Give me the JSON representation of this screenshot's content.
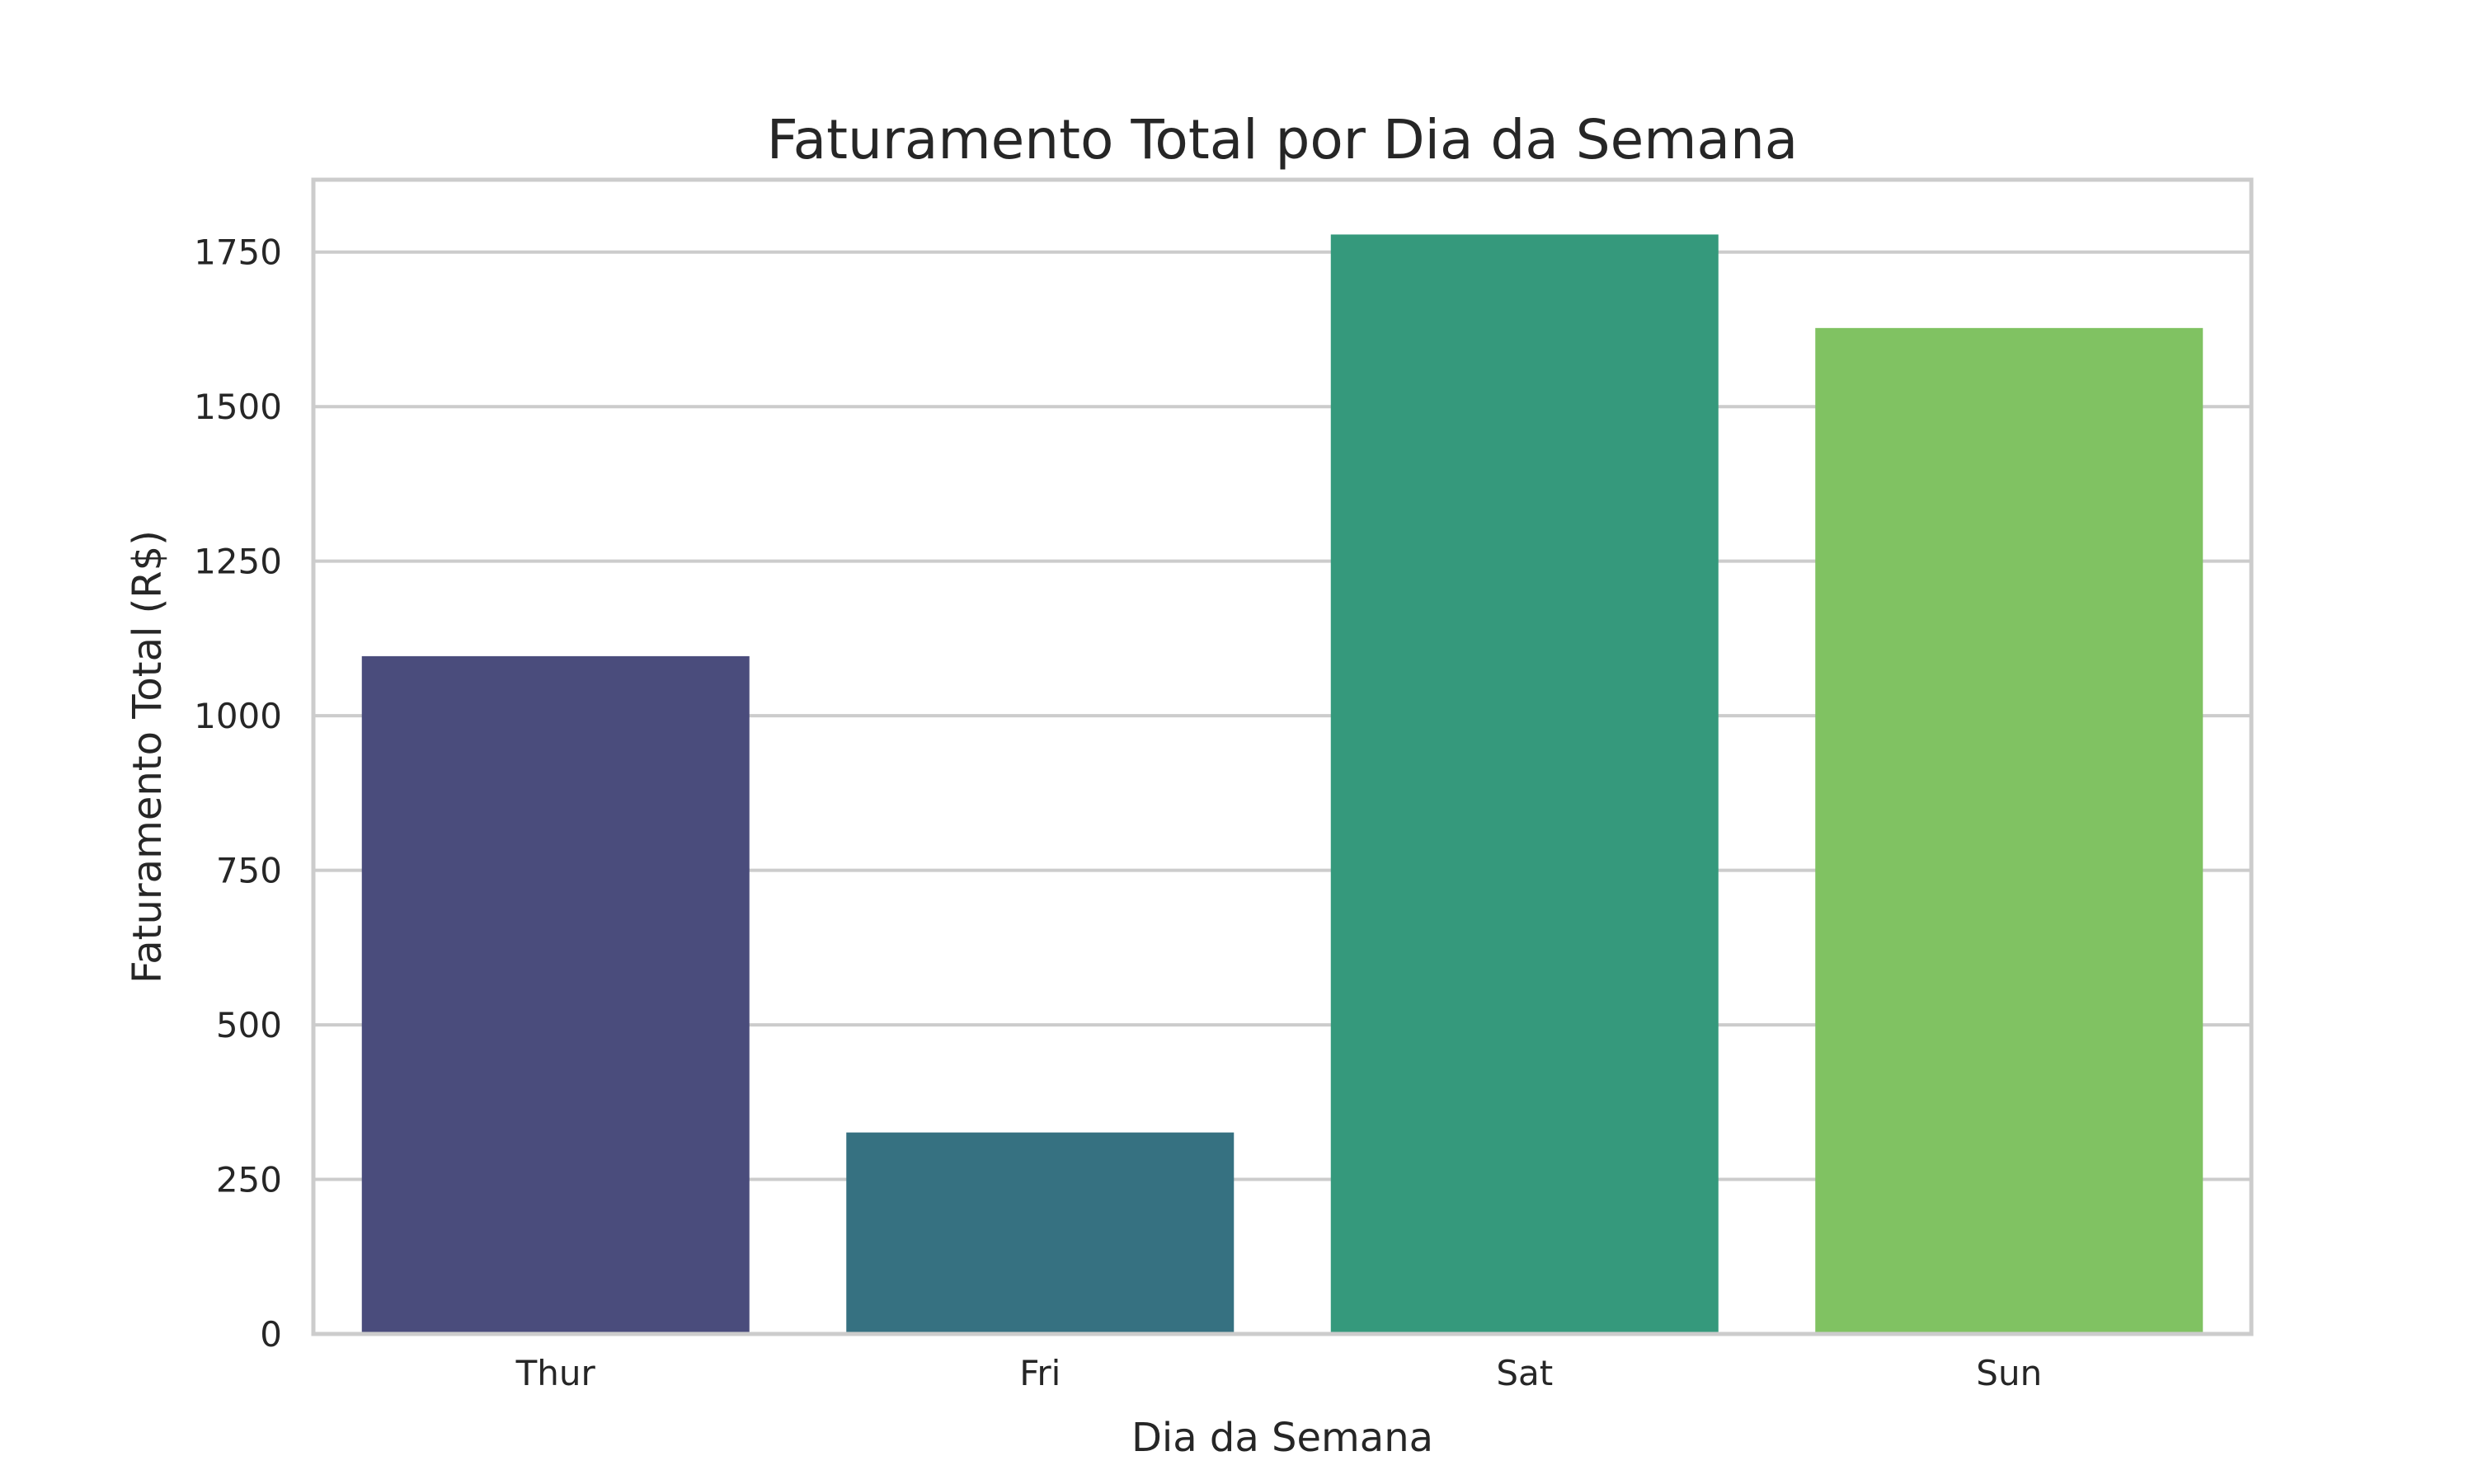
{
  "chart_data": {
    "type": "bar",
    "title": "Faturamento Total por Dia da Semana",
    "xlabel": "Dia da Semana",
    "ylabel": "Faturamento Total (R$)",
    "categories": [
      "Thur",
      "Fri",
      "Sat",
      "Sun"
    ],
    "values": [
      1096.33,
      325.88,
      1778.4,
      1627.16
    ],
    "colors": [
      "#4a4c7c",
      "#367181",
      "#35997c",
      "#80c262"
    ],
    "yticks": [
      0,
      250,
      500,
      750,
      1000,
      1250,
      1500,
      1750
    ],
    "ytick_labels": [
      "0",
      "250",
      "500",
      "750",
      "1000",
      "1250",
      "1500",
      "1750"
    ],
    "ylim": [
      0,
      1867
    ],
    "grid": "horizontal",
    "grid_color": "#cccccc",
    "frame_color": "#cccccc",
    "text_color": "#262626"
  }
}
